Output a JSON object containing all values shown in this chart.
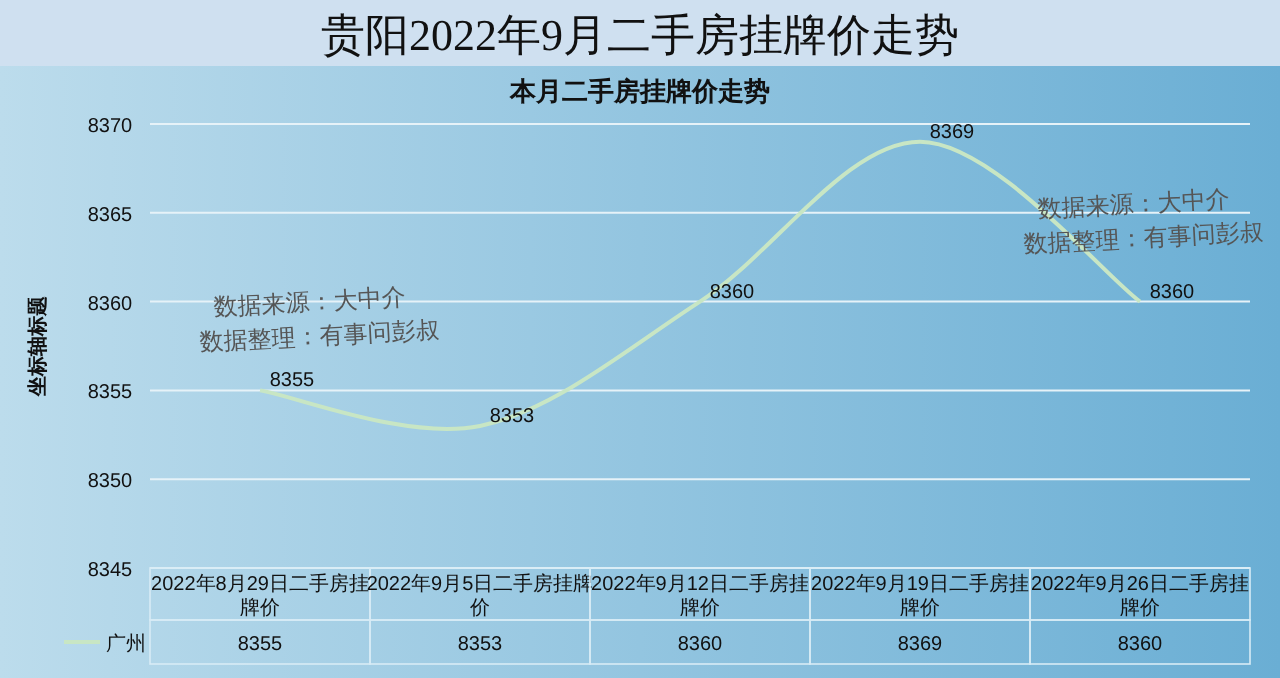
{
  "chart_data": {
    "type": "line",
    "title": "贵阳2022年9月二手房挂牌价走势",
    "subtitle": "本月二手房挂牌价走势",
    "ylabel": "坐标轴标题",
    "categories": [
      "2022年8月29日二手房挂牌价",
      "2022年9月5日二手房挂牌价",
      "2022年9月12日二手房挂牌价",
      "2022年9月19日二手房挂牌价",
      "2022年9月26日二手房挂牌价"
    ],
    "series": [
      {
        "name": "广州",
        "color": "#c8e6c4",
        "values": [
          8355,
          8353,
          8360,
          8369,
          8360
        ]
      }
    ],
    "ylim": [
      8345,
      8370
    ],
    "yticks": [
      8345,
      8350,
      8355,
      8360,
      8365,
      8370
    ],
    "grid": "y",
    "legend": "bottom",
    "data_labels": true,
    "marker": "none",
    "line_style": "solid",
    "annotations": [
      "数据来源：大中介",
      "数据整理：有事问彭叔",
      "数据来源：大中介",
      "数据整理：有事问彭叔",
      "8355",
      "8353",
      "8360",
      "8369",
      "8360"
    ]
  }
}
